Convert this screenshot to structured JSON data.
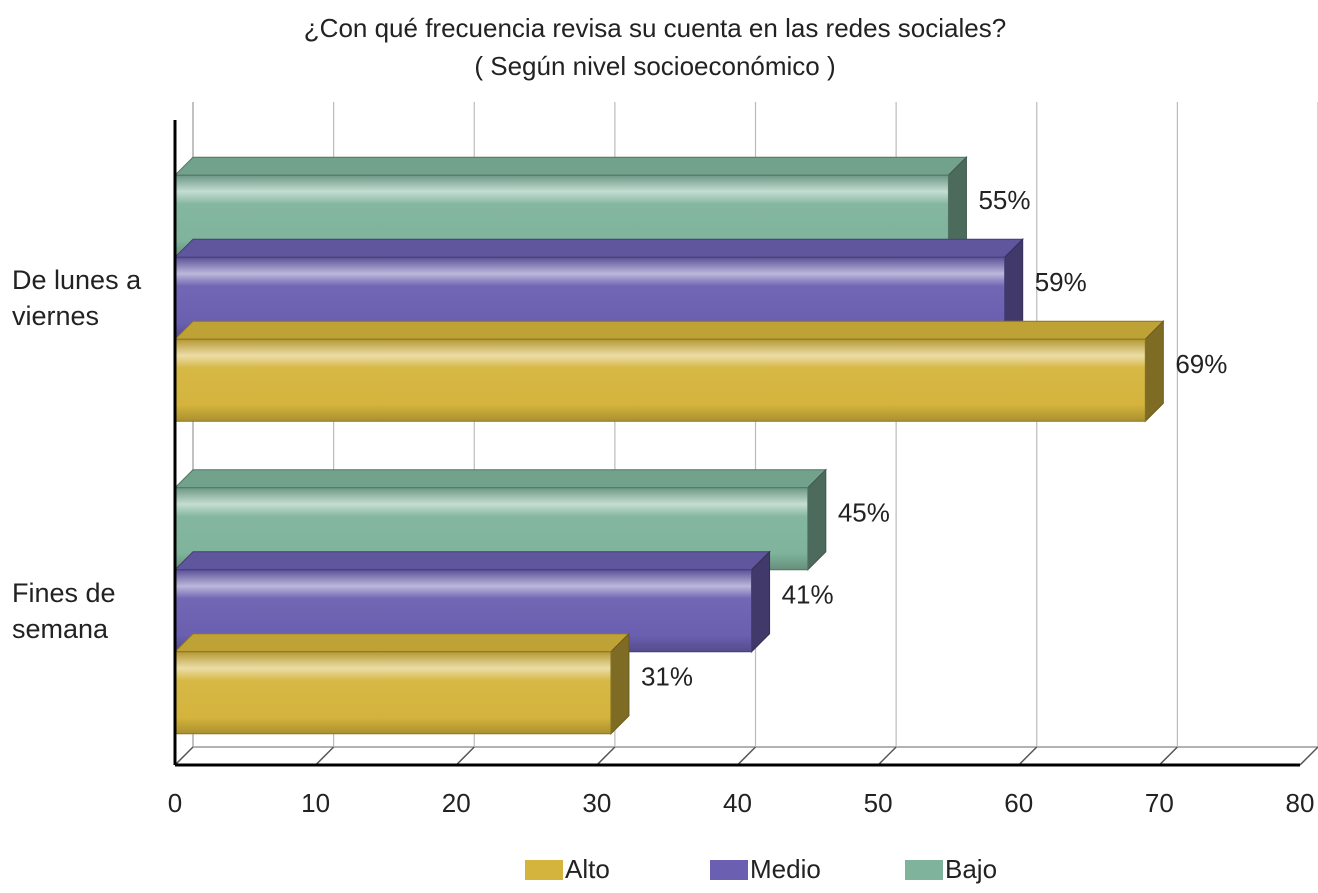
{
  "chart_data": {
    "type": "bar",
    "orientation": "horizontal",
    "title": "¿Con qué frecuencia revisa su cuenta en las redes sociales?",
    "subtitle": "( Según nivel socioeconómico )",
    "categories": [
      "De lunes a viernes",
      "Fines de semana"
    ],
    "series": [
      {
        "name": "Alto",
        "color": "#d4b43c",
        "values": [
          69,
          31
        ],
        "value_labels": [
          "69%",
          "31%"
        ]
      },
      {
        "name": "Medio",
        "color": "#6a5fb0",
        "values": [
          59,
          41
        ],
        "value_labels": [
          "59%",
          "41%"
        ]
      },
      {
        "name": "Bajo",
        "color": "#7fb39b",
        "values": [
          55,
          45
        ],
        "value_labels": [
          "55%",
          "45%"
        ]
      }
    ],
    "xlim": [
      0,
      80
    ],
    "xticks": [
      0,
      10,
      20,
      30,
      40,
      50,
      60,
      70,
      80
    ],
    "grid": true,
    "legend": "bottom"
  }
}
